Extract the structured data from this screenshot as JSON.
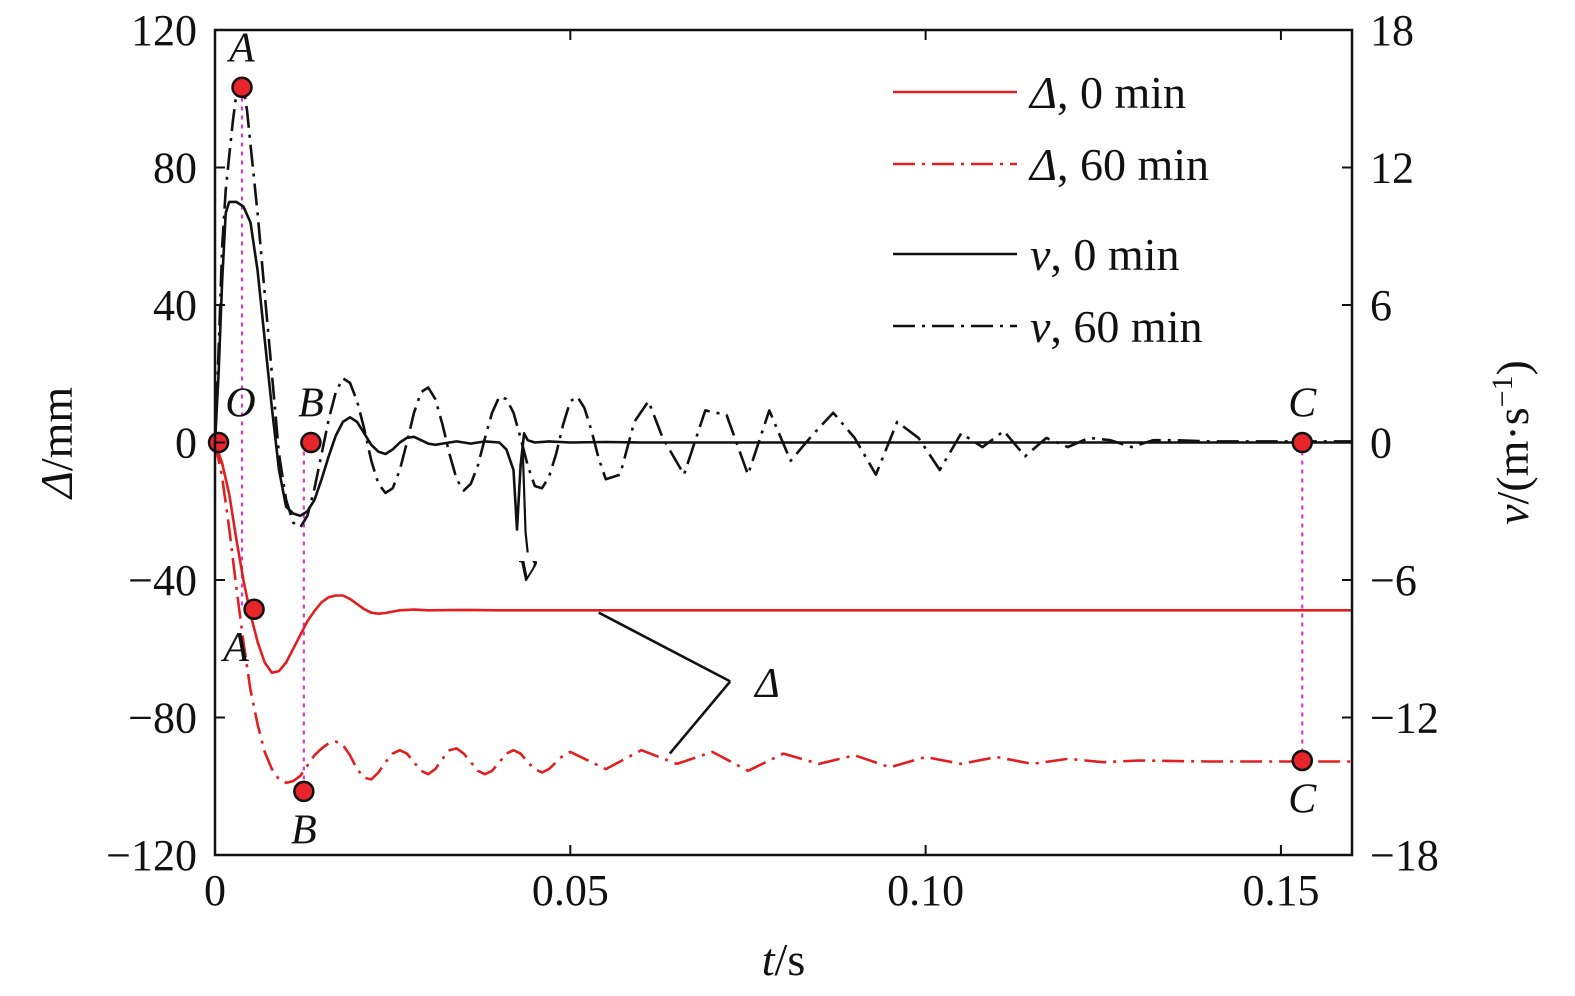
{
  "chart_data": {
    "type": "line",
    "xlabel": {
      "var": "t",
      "unit": "/s"
    },
    "ylabel_left": {
      "var": "Δ",
      "unit": "/mm"
    },
    "ylabel_right": {
      "var": "v",
      "unit": "/(m·s",
      "sup": "−1",
      "close": ")"
    },
    "xlim": [
      0,
      0.16
    ],
    "ylim_left": [
      -120,
      120
    ],
    "ylim_right": [
      -18,
      18
    ],
    "x_ticks": [
      0,
      0.05,
      0.1,
      0.15
    ],
    "x_tick_labels": [
      "0",
      "0.05",
      "0.10",
      "0.15"
    ],
    "y_left_ticks": [
      120,
      80,
      40,
      0,
      -40,
      -80,
      -120
    ],
    "y_left_tick_labels": [
      "120",
      "80",
      "40",
      "0",
      "−40",
      "−80",
      "−120"
    ],
    "y_right_ticks": [
      18,
      12,
      6,
      0,
      -6,
      -12,
      -18
    ],
    "y_right_tick_labels": [
      "18",
      "12",
      "6",
      "0",
      "−6",
      "−12",
      "−18"
    ],
    "grid": false,
    "legend_position": "top-right",
    "series": [
      {
        "name": "Δ, 0 min",
        "legend_var": "Δ",
        "legend_rest": ", 0 min",
        "axis": "left",
        "color": "#e02020",
        "dash": "solid",
        "x": [
          0,
          0.001,
          0.002,
          0.003,
          0.004,
          0.005,
          0.006,
          0.007,
          0.008,
          0.009,
          0.01,
          0.011,
          0.012,
          0.013,
          0.014,
          0.015,
          0.016,
          0.017,
          0.018,
          0.019,
          0.02,
          0.021,
          0.022,
          0.023,
          0.024,
          0.025,
          0.026,
          0.028,
          0.03,
          0.035,
          0.04,
          0.05,
          0.06,
          0.08,
          0.1,
          0.12,
          0.14,
          0.16
        ],
        "y": [
          0,
          -6,
          -15,
          -28,
          -40,
          -50,
          -58,
          -64,
          -67,
          -66.5,
          -64,
          -60,
          -56,
          -52,
          -49,
          -46.5,
          -45,
          -44.5,
          -44.5,
          -45.5,
          -47,
          -48.5,
          -49.5,
          -49.8,
          -49.6,
          -49.2,
          -48.8,
          -48.6,
          -48.8,
          -48.7,
          -48.8,
          -48.8,
          -48.8,
          -48.8,
          -48.8,
          -48.8,
          -48.8,
          -48.8
        ]
      },
      {
        "name": "Δ, 60 min",
        "legend_var": "Δ",
        "legend_rest": ", 60 min",
        "axis": "left",
        "color": "#e02020",
        "dash": "dashdot",
        "x": [
          0,
          0.001,
          0.002,
          0.003,
          0.004,
          0.005,
          0.006,
          0.007,
          0.008,
          0.009,
          0.01,
          0.011,
          0.012,
          0.013,
          0.014,
          0.015,
          0.016,
          0.017,
          0.018,
          0.019,
          0.02,
          0.021,
          0.022,
          0.023,
          0.024,
          0.025,
          0.026,
          0.027,
          0.028,
          0.029,
          0.03,
          0.031,
          0.032,
          0.033,
          0.034,
          0.035,
          0.036,
          0.037,
          0.038,
          0.039,
          0.04,
          0.041,
          0.042,
          0.043,
          0.044,
          0.045,
          0.046,
          0.047,
          0.048,
          0.049,
          0.05,
          0.055,
          0.06,
          0.065,
          0.07,
          0.075,
          0.08,
          0.085,
          0.09,
          0.095,
          0.1,
          0.105,
          0.11,
          0.115,
          0.12,
          0.125,
          0.13,
          0.14,
          0.15,
          0.16
        ],
        "y": [
          0,
          -10,
          -25,
          -42,
          -58,
          -72,
          -82,
          -90,
          -95,
          -98,
          -99,
          -98.5,
          -97,
          -94,
          -91,
          -89,
          -87.5,
          -87,
          -88,
          -91,
          -95,
          -97.5,
          -98,
          -96,
          -93,
          -90.5,
          -89.5,
          -90.5,
          -93,
          -95.5,
          -96.5,
          -95,
          -92,
          -89.5,
          -89,
          -90.5,
          -93,
          -95.5,
          -96.5,
          -95.5,
          -93,
          -90.5,
          -89.5,
          -90.5,
          -93,
          -95,
          -96,
          -95,
          -93,
          -91,
          -90,
          -95,
          -89.5,
          -93.5,
          -90,
          -95.5,
          -90.5,
          -93.5,
          -91,
          -94.5,
          -91.5,
          -93.5,
          -91.5,
          -93.5,
          -92,
          -93,
          -92.5,
          -92.8,
          -92.8,
          -92.8
        ]
      },
      {
        "name": "v, 0 min",
        "legend_var": "v",
        "legend_rest": ", 0 min",
        "axis": "right",
        "color": "#111111",
        "dash": "solid",
        "x": [
          0,
          0.0005,
          0.001,
          0.0015,
          0.002,
          0.003,
          0.004,
          0.005,
          0.006,
          0.007,
          0.008,
          0.009,
          0.01,
          0.011,
          0.012,
          0.013,
          0.014,
          0.015,
          0.016,
          0.017,
          0.018,
          0.019,
          0.02,
          0.021,
          0.022,
          0.023,
          0.024,
          0.025,
          0.026,
          0.027,
          0.028,
          0.029,
          0.03,
          0.031,
          0.032,
          0.034,
          0.036,
          0.038,
          0.04,
          0.041,
          0.042,
          0.0425,
          0.043,
          0.0435,
          0.044,
          0.045,
          0.047,
          0.05,
          0.055,
          0.06,
          0.08,
          0.1,
          0.12,
          0.14,
          0.16
        ],
        "y": [
          0,
          3,
          7,
          10,
          10.5,
          10.5,
          10.3,
          9.6,
          7.5,
          4.5,
          1.5,
          -1.2,
          -2.8,
          -3.1,
          -3.2,
          -3.0,
          -2.5,
          -1.6,
          -0.6,
          0.3,
          0.9,
          1.1,
          0.9,
          0.4,
          -0.1,
          -0.4,
          -0.5,
          -0.3,
          0.0,
          0.2,
          0.25,
          0.1,
          -0.05,
          -0.1,
          -0.05,
          0.05,
          -0.05,
          0.05,
          0,
          -0.3,
          -1.2,
          -3.8,
          -1.0,
          0.4,
          0.1,
          0,
          0.05,
          0,
          0.02,
          0,
          0,
          0,
          0,
          0,
          0
        ]
      },
      {
        "name": "v, 60 min",
        "legend_var": "v",
        "legend_rest": ", 60 min",
        "axis": "right",
        "color": "#111111",
        "dash": "dashdot",
        "x": [
          0,
          0.0005,
          0.001,
          0.0015,
          0.002,
          0.0025,
          0.003,
          0.0035,
          0.004,
          0.0045,
          0.005,
          0.006,
          0.007,
          0.008,
          0.009,
          0.01,
          0.011,
          0.012,
          0.013,
          0.014,
          0.015,
          0.016,
          0.017,
          0.018,
          0.019,
          0.02,
          0.021,
          0.022,
          0.023,
          0.024,
          0.025,
          0.026,
          0.027,
          0.028,
          0.029,
          0.03,
          0.031,
          0.032,
          0.033,
          0.034,
          0.035,
          0.036,
          0.037,
          0.038,
          0.039,
          0.04,
          0.041,
          0.042,
          0.043,
          0.044,
          0.045,
          0.046,
          0.047,
          0.048,
          0.049,
          0.05,
          0.051,
          0.052,
          0.053,
          0.054,
          0.055,
          0.057,
          0.059,
          0.061,
          0.063,
          0.066,
          0.069,
          0.072,
          0.075,
          0.078,
          0.081,
          0.084,
          0.087,
          0.09,
          0.093,
          0.096,
          0.099,
          0.102,
          0.105,
          0.108,
          0.111,
          0.114,
          0.117,
          0.12,
          0.123,
          0.126,
          0.129,
          0.132,
          0.135,
          0.14,
          0.145,
          0.15,
          0.16
        ],
        "y": [
          0,
          4,
          8.5,
          11,
          12.5,
          14,
          15.2,
          15.8,
          15.5,
          14.5,
          13,
          10,
          6.5,
          3,
          -0.5,
          -2.5,
          -3.5,
          -3.7,
          -3.2,
          -2,
          -0.5,
          1,
          2.2,
          2.8,
          2.6,
          1.8,
          0.6,
          -0.8,
          -1.8,
          -2.2,
          -2,
          -1.2,
          0,
          1.3,
          2.2,
          2.4,
          1.9,
          0.8,
          -0.5,
          -1.6,
          -2.1,
          -1.8,
          -1,
          0.2,
          1.3,
          2,
          1.9,
          1.3,
          0.2,
          -1.0,
          -1.9,
          -2.0,
          -1.5,
          -0.5,
          0.8,
          1.8,
          2.0,
          1.5,
          0.5,
          -0.7,
          -1.6,
          -1.4,
          0.9,
          1.8,
          0.2,
          -1.4,
          1.4,
          1.2,
          -1.4,
          1.4,
          -0.8,
          0.3,
          1.3,
          0.2,
          -1.4,
          0.9,
          0.2,
          -1.2,
          0.4,
          -0.2,
          0.5,
          -0.6,
          0.2,
          -0.2,
          0.2,
          0.1,
          -0.2,
          0.1,
          0.1,
          0.05,
          0.05,
          0.05,
          0.05
        ]
      }
    ],
    "markers": [
      {
        "label": "A",
        "axis": "right",
        "x": 0.0038,
        "y": 15.5,
        "label_pos": "above"
      },
      {
        "label": "O",
        "axis": "left",
        "x": 0.0005,
        "y": 0,
        "label_pos": "above-right"
      },
      {
        "label": "B",
        "axis": "left",
        "x": 0.0135,
        "y": 0,
        "label_pos": "above"
      },
      {
        "label": "C",
        "axis": "left",
        "x": 0.153,
        "y": 0,
        "label_pos": "above"
      },
      {
        "label": "A",
        "axis": "left",
        "x": 0.0055,
        "y": -48.5,
        "label_pos": "below-left"
      },
      {
        "label": "B",
        "axis": "left",
        "x": 0.0125,
        "y": -101.5,
        "label_pos": "below"
      },
      {
        "label": "C",
        "axis": "left",
        "x": 0.153,
        "y": -92.5,
        "label_pos": "below"
      }
    ],
    "guide_lines": [
      {
        "x": 0.0038,
        "from": 103,
        "to": -48.5
      },
      {
        "x": 0.0125,
        "from": 0,
        "to": -101.5
      },
      {
        "x": 0.153,
        "from": 0,
        "to": -92.5
      }
    ],
    "annotations": [
      {
        "text": "v",
        "x": 0.044,
        "y": -36
      },
      {
        "text": "Δ",
        "x": 0.076,
        "y": -70
      }
    ],
    "colors": {
      "marker_fill": "#e8252b",
      "guide": "#d63cc8"
    }
  }
}
